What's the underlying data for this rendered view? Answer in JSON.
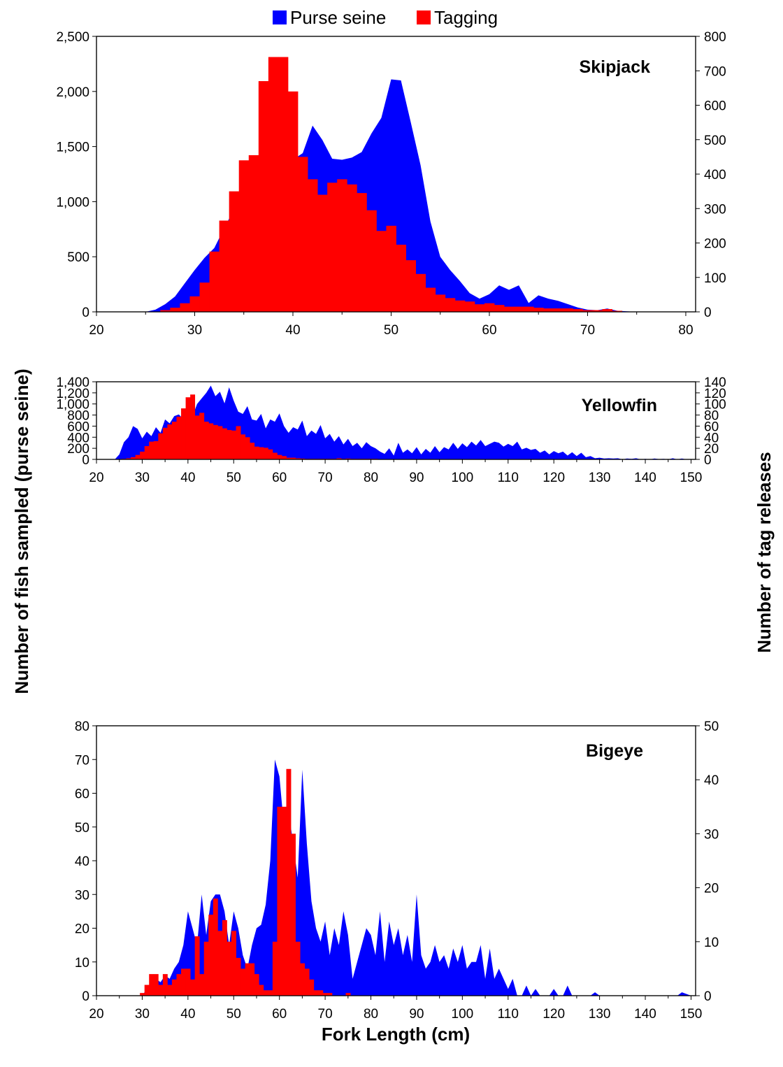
{
  "legend": [
    {
      "name": "Purse seine",
      "color": "#0000ff"
    },
    {
      "name": "Tagging",
      "color": "#ff0000"
    }
  ],
  "ylabel_left": "Number of fish sampled (purse seine)",
  "ylabel_right": "Number of tag releases",
  "xlabel": "Fork Length (cm)",
  "chart_data": [
    {
      "type": "area",
      "title": "Skipjack",
      "xlim": [
        20,
        81
      ],
      "ylim_left": [
        0,
        2500
      ],
      "ylim_right": [
        0,
        800
      ],
      "x_ticks": [
        "20",
        "30",
        "40",
        "50",
        "60",
        "70",
        "80"
      ],
      "y_left_ticks": [
        "0",
        "500",
        "1,000",
        "1,500",
        "2,000",
        "2,500"
      ],
      "y_right_ticks": [
        "0",
        "100",
        "200",
        "300",
        "400",
        "500",
        "600",
        "700",
        "800"
      ],
      "series": [
        {
          "name": "Purse seine",
          "color": "#0000ff",
          "axis": "left",
          "kind": "area",
          "x": [
            20,
            21,
            22,
            23,
            24,
            25,
            26,
            27,
            28,
            29,
            30,
            31,
            32,
            33,
            34,
            35,
            36,
            37,
            38,
            39,
            40,
            41,
            42,
            43,
            44,
            45,
            46,
            47,
            48,
            49,
            50,
            51,
            52,
            53,
            54,
            55,
            56,
            57,
            58,
            59,
            60,
            61,
            62,
            63,
            64,
            65,
            66,
            67,
            68,
            69,
            70,
            71,
            72,
            73,
            74,
            75,
            76,
            77,
            78,
            79,
            80
          ],
          "y": [
            0,
            0,
            0,
            0,
            0,
            0,
            20,
            70,
            140,
            260,
            380,
            490,
            580,
            760,
            930,
            1080,
            1170,
            1240,
            1290,
            1330,
            1380,
            1440,
            1690,
            1560,
            1390,
            1380,
            1400,
            1450,
            1620,
            1760,
            2110,
            2100,
            1720,
            1330,
            820,
            500,
            380,
            280,
            170,
            120,
            160,
            240,
            200,
            240,
            80,
            150,
            120,
            100,
            70,
            40,
            20,
            15,
            30,
            10,
            5,
            0,
            0,
            0,
            0,
            0,
            0
          ]
        },
        {
          "name": "Tagging",
          "color": "#ff0000",
          "axis": "right",
          "kind": "bar",
          "x": [
            27,
            28,
            29,
            30,
            31,
            32,
            33,
            34,
            35,
            36,
            37,
            38,
            39,
            40,
            41,
            42,
            43,
            44,
            45,
            46,
            47,
            48,
            49,
            50,
            51,
            52,
            53,
            54,
            55,
            56,
            57,
            58,
            59,
            60,
            61,
            62,
            63,
            64,
            65,
            66,
            67,
            68,
            69,
            70,
            71,
            72,
            73
          ],
          "y": [
            5,
            12,
            25,
            45,
            85,
            175,
            265,
            350,
            440,
            455,
            670,
            740,
            740,
            640,
            450,
            385,
            340,
            375,
            385,
            370,
            345,
            295,
            235,
            250,
            195,
            150,
            110,
            70,
            50,
            40,
            33,
            30,
            22,
            25,
            20,
            15,
            15,
            15,
            12,
            10,
            10,
            10,
            8,
            5,
            5,
            8,
            3
          ]
        }
      ]
    },
    {
      "type": "area",
      "title": "Yellowfin",
      "xlim": [
        20,
        151
      ],
      "ylim_left": [
        0,
        1400
      ],
      "ylim_right": [
        0,
        140
      ],
      "x_ticks": [
        "20",
        "30",
        "40",
        "50",
        "60",
        "70",
        "80",
        "90",
        "100",
        "110",
        "120",
        "130",
        "140",
        "150"
      ],
      "y_left_ticks": [
        "0",
        "200",
        "400",
        "600",
        "800",
        "1,000",
        "1,200",
        "1,400"
      ],
      "y_right_ticks": [
        "0",
        "20",
        "40",
        "60",
        "80",
        "100",
        "120",
        "140"
      ],
      "series": [
        {
          "name": "Purse seine",
          "color": "#0000ff",
          "axis": "left",
          "kind": "area",
          "x": [
            20,
            24,
            25,
            26,
            27,
            28,
            29,
            30,
            31,
            32,
            33,
            34,
            35,
            36,
            37,
            38,
            39,
            40,
            41,
            42,
            43,
            44,
            45,
            46,
            47,
            48,
            49,
            50,
            51,
            52,
            53,
            54,
            55,
            56,
            57,
            58,
            59,
            60,
            61,
            62,
            63,
            64,
            65,
            66,
            67,
            68,
            69,
            70,
            71,
            72,
            73,
            74,
            75,
            76,
            77,
            78,
            79,
            80,
            81,
            82,
            83,
            84,
            85,
            86,
            87,
            88,
            89,
            90,
            91,
            92,
            93,
            94,
            95,
            96,
            97,
            98,
            99,
            100,
            101,
            102,
            103,
            104,
            105,
            106,
            107,
            108,
            109,
            110,
            111,
            112,
            113,
            114,
            115,
            116,
            117,
            118,
            119,
            120,
            121,
            122,
            123,
            124,
            125,
            126,
            127,
            128,
            129,
            130,
            131,
            132,
            133,
            134,
            135,
            136,
            137,
            138,
            139,
            140,
            141,
            142,
            143,
            144,
            145,
            146,
            147,
            148,
            149,
            150
          ],
          "y": [
            0,
            0,
            90,
            310,
            400,
            600,
            550,
            380,
            500,
            420,
            580,
            480,
            720,
            650,
            780,
            810,
            730,
            800,
            780,
            1000,
            1100,
            1200,
            1330,
            1140,
            1220,
            1010,
            1300,
            1060,
            860,
            820,
            960,
            720,
            700,
            820,
            560,
            720,
            680,
            830,
            600,
            480,
            580,
            540,
            700,
            420,
            520,
            460,
            620,
            380,
            460,
            320,
            420,
            270,
            370,
            240,
            300,
            200,
            310,
            240,
            200,
            140,
            100,
            200,
            70,
            300,
            120,
            180,
            110,
            220,
            90,
            190,
            120,
            240,
            130,
            220,
            180,
            300,
            190,
            290,
            220,
            320,
            250,
            350,
            240,
            280,
            320,
            300,
            230,
            280,
            240,
            320,
            180,
            210,
            170,
            190,
            120,
            160,
            90,
            150,
            110,
            140,
            70,
            130,
            60,
            120,
            40,
            60,
            20,
            30,
            15,
            20,
            15,
            20,
            0,
            15,
            10,
            20,
            0,
            10,
            0,
            15,
            5,
            10,
            0,
            20,
            0,
            15,
            0,
            0
          ]
        },
        {
          "name": "Tagging",
          "color": "#ff0000",
          "axis": "right",
          "kind": "bar",
          "x": [
            26,
            27,
            28,
            29,
            30,
            31,
            32,
            33,
            34,
            35,
            36,
            37,
            38,
            39,
            40,
            41,
            42,
            43,
            44,
            45,
            46,
            47,
            48,
            49,
            50,
            51,
            52,
            53,
            54,
            55,
            56,
            57,
            58,
            59,
            60,
            61,
            62,
            63,
            64,
            65,
            66,
            67,
            68,
            69,
            70,
            71,
            72,
            73,
            74,
            75,
            76,
            77,
            78,
            79,
            80,
            81
          ],
          "y": [
            1,
            2,
            4,
            8,
            14,
            24,
            32,
            33,
            47,
            57,
            63,
            68,
            77,
            92,
            112,
            117,
            79,
            84,
            68,
            65,
            62,
            60,
            56,
            53,
            52,
            60,
            45,
            40,
            30,
            23,
            22,
            21,
            18,
            12,
            8,
            6,
            3,
            3,
            2,
            1.5,
            1,
            1,
            1,
            1,
            1,
            1,
            1,
            2,
            1,
            1.5,
            1,
            1,
            1,
            1,
            1,
            1
          ]
        }
      ]
    },
    {
      "type": "area",
      "title": "Bigeye",
      "xlim": [
        20,
        151
      ],
      "ylim_left": [
        0,
        80
      ],
      "ylim_right": [
        0,
        50
      ],
      "x_ticks": [
        "20",
        "30",
        "40",
        "50",
        "60",
        "70",
        "80",
        "90",
        "100",
        "110",
        "120",
        "130",
        "140",
        "150"
      ],
      "y_left_ticks": [
        "0",
        "10",
        "20",
        "30",
        "40",
        "50",
        "60",
        "70",
        "80"
      ],
      "y_right_ticks": [
        "0",
        "10",
        "20",
        "30",
        "40",
        "50"
      ],
      "series": [
        {
          "name": "Purse seine",
          "color": "#0000ff",
          "axis": "left",
          "kind": "area",
          "x": [
            20,
            30,
            31,
            32,
            33,
            34,
            35,
            36,
            37,
            38,
            39,
            40,
            41,
            42,
            43,
            44,
            45,
            46,
            47,
            48,
            49,
            50,
            51,
            52,
            53,
            54,
            55,
            56,
            57,
            58,
            59,
            60,
            61,
            62,
            63,
            64,
            65,
            66,
            67,
            68,
            69,
            70,
            71,
            72,
            73,
            74,
            75,
            76,
            77,
            78,
            79,
            80,
            81,
            82,
            83,
            84,
            85,
            86,
            87,
            88,
            89,
            90,
            91,
            92,
            93,
            94,
            95,
            96,
            97,
            98,
            99,
            100,
            101,
            102,
            103,
            104,
            105,
            106,
            107,
            108,
            109,
            110,
            111,
            112,
            113,
            114,
            115,
            116,
            117,
            118,
            119,
            120,
            121,
            122,
            123,
            124,
            125,
            126,
            127,
            128,
            129,
            130,
            131,
            132,
            146,
            147,
            148,
            150
          ],
          "y": [
            0,
            0,
            2,
            3,
            5,
            4,
            6,
            5,
            8,
            10,
            15,
            25,
            20,
            15,
            30,
            18,
            28,
            30,
            30,
            25,
            15,
            25,
            20,
            12,
            8,
            15,
            20,
            21,
            27,
            40,
            70,
            65,
            50,
            55,
            45,
            35,
            67,
            45,
            28,
            20,
            16,
            22,
            12,
            20,
            15,
            25,
            18,
            5,
            10,
            15,
            20,
            18,
            12,
            25,
            10,
            22,
            15,
            20,
            12,
            18,
            10,
            30,
            12,
            8,
            10,
            15,
            10,
            12,
            8,
            14,
            10,
            15,
            8,
            10,
            10,
            15,
            5,
            14,
            5,
            8,
            5,
            2,
            5,
            0,
            0,
            3,
            0,
            2,
            0,
            0,
            0,
            2,
            0,
            0,
            3,
            0,
            0,
            0,
            0,
            0,
            1,
            0,
            0,
            0,
            0,
            0,
            1,
            0
          ]
        },
        {
          "name": "Tagging",
          "color": "#ff0000",
          "axis": "right",
          "kind": "bar",
          "x": [
            30,
            31,
            32,
            33,
            34,
            35,
            36,
            37,
            38,
            39,
            40,
            41,
            42,
            43,
            44,
            45,
            46,
            47,
            48,
            49,
            50,
            51,
            52,
            53,
            54,
            55,
            56,
            57,
            58,
            59,
            60,
            61,
            62,
            63,
            64,
            65,
            66,
            67,
            68,
            69,
            70,
            71,
            72,
            73,
            74,
            75
          ],
          "y": [
            0.5,
            2,
            4,
            4,
            2,
            4,
            2,
            3,
            4,
            5,
            5,
            3,
            11,
            4,
            10,
            15,
            18,
            12,
            14,
            10,
            12,
            7,
            5,
            6,
            6,
            4,
            2,
            1,
            1,
            10,
            35,
            35,
            42,
            30,
            10,
            6,
            5,
            3,
            1,
            1,
            0.5,
            0.5,
            0,
            0,
            0,
            0.5
          ]
        }
      ]
    }
  ]
}
